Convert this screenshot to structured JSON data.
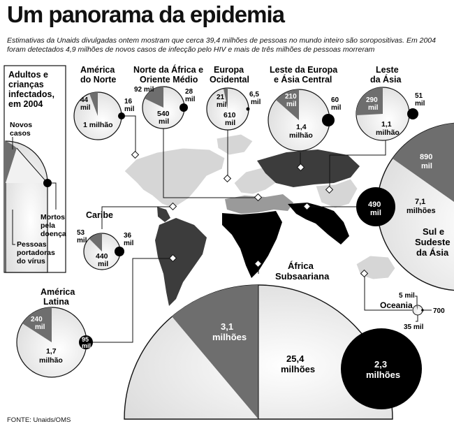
{
  "title": "Um panorama da epidemia",
  "subtitle": "Estimativas da Unaids divulgadas ontem mostram que cerca 39,4 milhões de pessoas no mundo inteiro são soropositivas. Em 2004 foram detectados 4,9 milhões de novos casos de infecção pelo HIV e mais de três milhões de pessoas morreram",
  "source": "FONTE: Unaids/OMS",
  "legend": {
    "heading": [
      "Adultos e",
      "crianças",
      "infectados,",
      "em 2004"
    ],
    "new_cases": [
      "Novos",
      "casos"
    ],
    "deaths": [
      "Mortos",
      "pela",
      "doença"
    ],
    "living": [
      "Pessoas",
      "portadoras",
      "do vírus"
    ]
  },
  "regions": {
    "america_norte": {
      "name": [
        "América",
        "do Norte"
      ],
      "new": [
        "44",
        "mil"
      ],
      "living": [
        "1 milhão"
      ],
      "deaths": [
        "16",
        "mil"
      ]
    },
    "norte_africa": {
      "name": [
        "Norte da África e",
        "Oriente Médio"
      ],
      "new": [
        "92 mil"
      ],
      "living": [
        "540",
        "mil"
      ],
      "deaths": [
        "28",
        "mil"
      ]
    },
    "europa_ocidental": {
      "name": [
        "Europa",
        "Ocidental"
      ],
      "new": [
        "21",
        "mil"
      ],
      "living": [
        "610",
        "mil"
      ],
      "deaths": [
        "6,5",
        "mil"
      ]
    },
    "leste_europa": {
      "name": [
        "Leste da Europa",
        "e Ásia Central"
      ],
      "new": [
        "210",
        "mil"
      ],
      "living": [
        "1,4",
        "milhão"
      ],
      "deaths": [
        "60",
        "mil"
      ]
    },
    "leste_asia": {
      "name": [
        "Leste",
        "da Ásia"
      ],
      "new": [
        "290",
        "mil"
      ],
      "living": [
        "1,1",
        "milhão"
      ],
      "deaths": [
        "51",
        "mil"
      ]
    },
    "caribe": {
      "name": [
        "Caribe"
      ],
      "new": [
        "53",
        "mil"
      ],
      "living": [
        "440",
        "mil"
      ],
      "deaths": [
        "36",
        "mil"
      ]
    },
    "sul_sudeste_asia": {
      "name": [
        "Sul e",
        "Sudeste",
        "da Ásia"
      ],
      "new": [
        "890",
        "mil"
      ],
      "living": [
        "7,1",
        "milhões"
      ],
      "deaths": [
        "490",
        "mil"
      ]
    },
    "america_latina": {
      "name": [
        "América",
        "Latina"
      ],
      "new": [
        "240",
        "mil"
      ],
      "living": [
        "1,7",
        "milhão"
      ],
      "deaths": [
        "95",
        "mil"
      ]
    },
    "oceania": {
      "name": [
        "Oceania"
      ],
      "new": [
        "5 mil"
      ],
      "living": [
        "35 mil"
      ],
      "deaths": [
        "700"
      ]
    },
    "africa_subsaariana": {
      "name": [
        "África",
        "Subsaariana"
      ],
      "new": [
        "3,1",
        "milhões"
      ],
      "living": [
        "25,4",
        "milhões"
      ],
      "deaths": [
        "2,3",
        "milhões"
      ]
    }
  },
  "colors": {
    "new": "#6e6e6e",
    "living": "#f1f1f1",
    "deaths": "#000000",
    "map_light": "#d6d6d6",
    "map_mid": "#9a9a9a",
    "map_dark": "#3c3c3c"
  }
}
